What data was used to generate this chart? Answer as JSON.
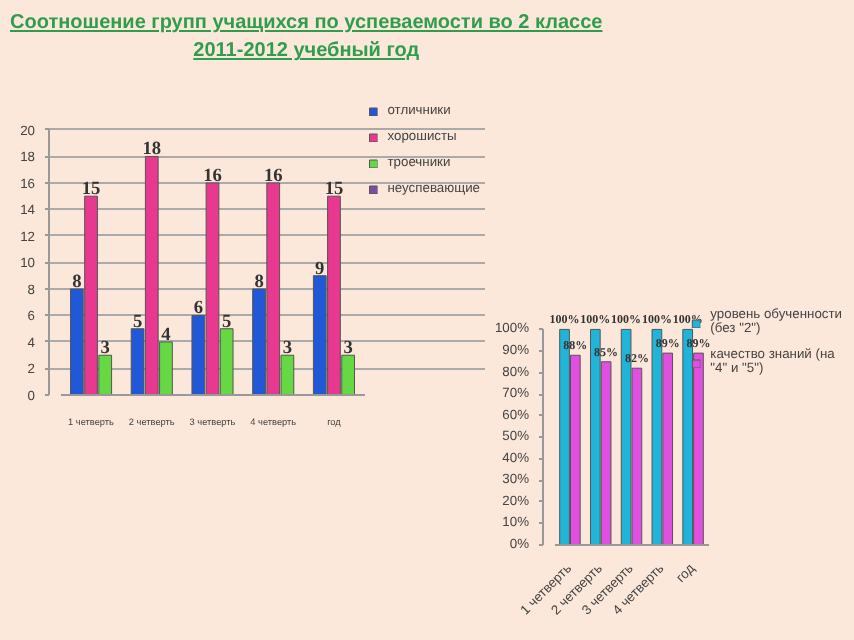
{
  "chart_data": [
    {
      "type": "bar",
      "title": "Соотношение групп учащихся по успеваемости во 2 классе\n2011-2012 учебный год",
      "categories": [
        "1 четверть",
        "2 четверть",
        "3 четверть",
        "4 четверть",
        "год"
      ],
      "series": [
        {
          "name": "отличники",
          "color": "#2058d8",
          "values": [
            8,
            5,
            6,
            8,
            9
          ]
        },
        {
          "name": "хорошисты",
          "color": "#e83890",
          "values": [
            15,
            18,
            16,
            16,
            15
          ]
        },
        {
          "name": "троечники",
          "color": "#66d844",
          "values": [
            3,
            4,
            5,
            3,
            3
          ]
        },
        {
          "name": "неуспевающие",
          "color": "#7a4fa0",
          "values": [
            null,
            null,
            null,
            null,
            null
          ]
        }
      ],
      "ylim": [
        0,
        20
      ],
      "yticks": [
        0,
        2,
        4,
        6,
        8,
        10,
        12,
        14,
        16,
        18,
        20
      ],
      "grid": "y",
      "legend": "right",
      "data_labels": true
    },
    {
      "type": "bar",
      "categories": [
        "1 четверть",
        "2 четверть",
        "3 четверть",
        "4 четверть",
        "год"
      ],
      "series": [
        {
          "name": "уровень обученности (без \"2\")",
          "color": "#20b4d8",
          "values": [
            100,
            100,
            100,
            100,
            100
          ],
          "value_labels": [
            "100%",
            "100%",
            "100%",
            "100%",
            "100%"
          ]
        },
        {
          "name": "качество знаний (на \"4\" и \"5\")",
          "color": "#e050e0",
          "values": [
            88,
            85,
            82,
            89,
            89
          ],
          "value_labels": [
            "88%",
            "85%",
            "82%",
            "89%",
            "89%"
          ]
        }
      ],
      "ylim": [
        0,
        100
      ],
      "yticks": [
        {
          "value": 0,
          "label": "0%"
        },
        {
          "value": 10,
          "label": "10%"
        },
        {
          "value": 20,
          "label": "20%"
        },
        {
          "value": 30,
          "label": "30%"
        },
        {
          "value": 40,
          "label": "40%"
        },
        {
          "value": 50,
          "label": "50%"
        },
        {
          "value": 60,
          "label": "60%"
        },
        {
          "value": 70,
          "label": "70%"
        },
        {
          "value": 80,
          "label": "80%"
        },
        {
          "value": 90,
          "label": "90%"
        },
        {
          "value": 100,
          "label": "100%"
        }
      ],
      "grid": false,
      "legend": "right"
    }
  ]
}
